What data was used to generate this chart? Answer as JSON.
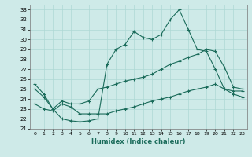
{
  "xlabel": "Humidex (Indice chaleur)",
  "ylabel": "",
  "bg_color": "#ceeae8",
  "line_color": "#1a6b5a",
  "grid_color": "#aed8d4",
  "xlim": [
    -0.5,
    23.5
  ],
  "ylim": [
    21,
    33.5
  ],
  "yticks": [
    21,
    22,
    23,
    24,
    25,
    26,
    27,
    28,
    29,
    30,
    31,
    32,
    33
  ],
  "xticks": [
    0,
    1,
    2,
    3,
    4,
    5,
    6,
    7,
    8,
    9,
    10,
    11,
    12,
    13,
    14,
    15,
    16,
    17,
    18,
    19,
    20,
    21,
    22,
    23
  ],
  "series1_x": [
    0,
    1,
    2,
    3,
    4,
    5,
    6,
    7,
    8,
    9,
    10,
    11,
    12,
    13,
    14,
    15,
    16,
    17,
    18,
    19,
    20,
    21,
    22,
    23
  ],
  "series1_y": [
    25.5,
    24.5,
    23.0,
    22.0,
    21.8,
    21.7,
    21.8,
    22.0,
    27.5,
    29.0,
    29.5,
    30.8,
    30.2,
    30.0,
    30.5,
    32.0,
    33.0,
    31.0,
    29.0,
    28.8,
    27.0,
    25.0,
    24.8,
    24.8
  ],
  "series2_x": [
    0,
    1,
    2,
    3,
    4,
    5,
    6,
    7,
    8,
    9,
    10,
    11,
    12,
    13,
    14,
    15,
    16,
    17,
    18,
    19,
    20,
    21,
    22,
    23
  ],
  "series2_y": [
    25.0,
    24.2,
    23.0,
    23.8,
    23.5,
    23.5,
    23.8,
    25.0,
    25.2,
    25.5,
    25.8,
    26.0,
    26.2,
    26.5,
    27.0,
    27.5,
    27.8,
    28.2,
    28.5,
    29.0,
    28.8,
    27.2,
    25.2,
    25.0
  ],
  "series3_x": [
    0,
    1,
    2,
    3,
    4,
    5,
    6,
    7,
    8,
    9,
    10,
    11,
    12,
    13,
    14,
    15,
    16,
    17,
    18,
    19,
    20,
    21,
    22,
    23
  ],
  "series3_y": [
    23.5,
    23.0,
    22.8,
    23.5,
    23.2,
    22.5,
    22.5,
    22.5,
    22.5,
    22.8,
    23.0,
    23.2,
    23.5,
    23.8,
    24.0,
    24.2,
    24.5,
    24.8,
    25.0,
    25.2,
    25.5,
    25.0,
    24.5,
    24.2
  ]
}
